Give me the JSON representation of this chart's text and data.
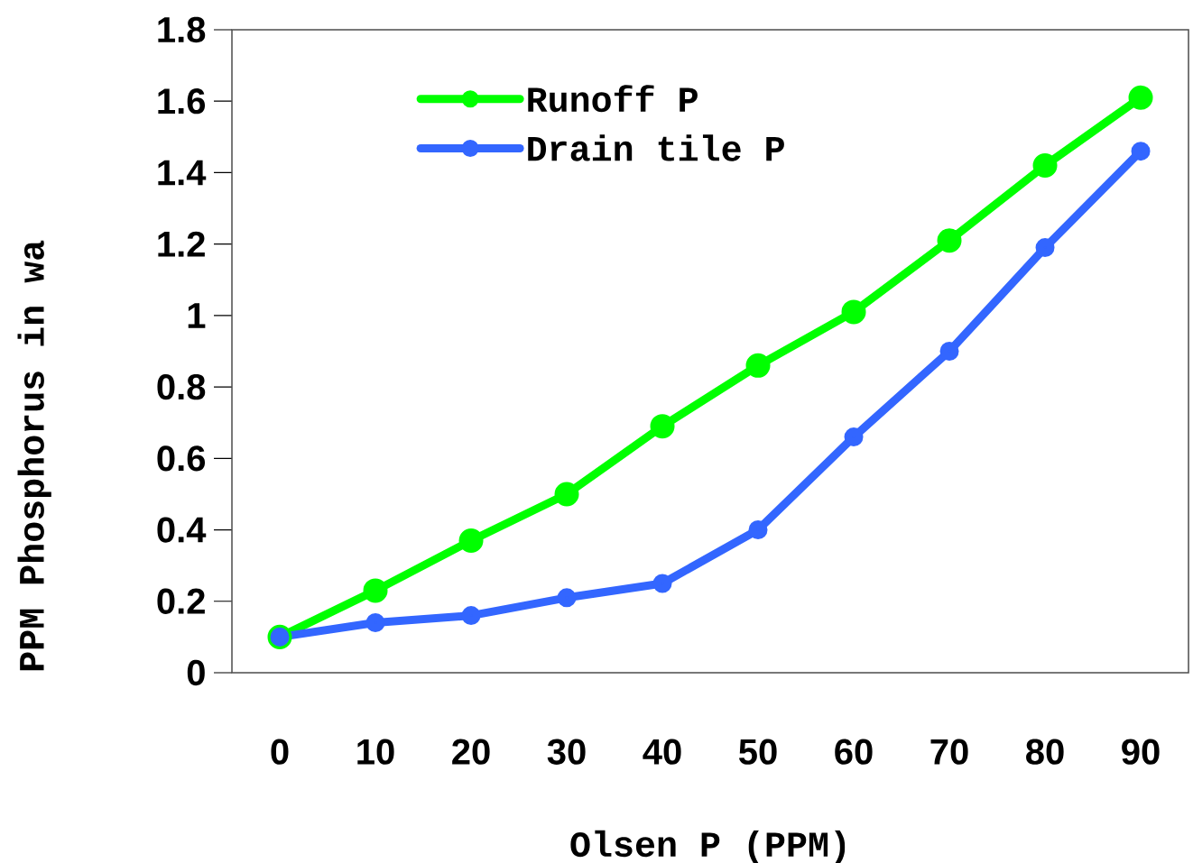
{
  "chart_data": {
    "type": "line",
    "xlabel": "Olsen P (PPM)",
    "ylabel": "PPM Phosphorus in wa",
    "categories": [
      "0",
      "10",
      "20",
      "30",
      "40",
      "50",
      "60",
      "70",
      "80",
      "90"
    ],
    "series": [
      {
        "name": "Runoff P",
        "color": "#00ff00",
        "values": [
          0.1,
          0.23,
          0.37,
          0.5,
          0.69,
          0.86,
          1.01,
          1.21,
          1.42,
          1.61
        ]
      },
      {
        "name": "Drain tile P",
        "color": "#3366ff",
        "values": [
          0.1,
          0.14,
          0.16,
          0.21,
          0.25,
          0.4,
          0.66,
          0.9,
          1.19,
          1.46
        ]
      }
    ],
    "ylim": [
      0,
      1.8
    ],
    "yticks": [
      0,
      0.2,
      0.4,
      0.6,
      0.8,
      1,
      1.2,
      1.4,
      1.6,
      1.8
    ],
    "legend": "top left",
    "marker": "circle",
    "line_style": "solid",
    "grid": false
  }
}
